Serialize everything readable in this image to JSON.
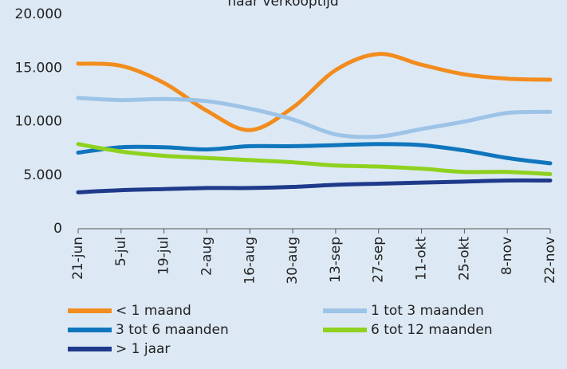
{
  "chart_data": {
    "type": "line",
    "title": "naar verkooptijd",
    "categories": [
      "21-jun",
      "5-jul",
      "19-jul",
      "2-aug",
      "16-aug",
      "30-aug",
      "13-sep",
      "27-sep",
      "11-okt",
      "25-okt",
      "8-nov",
      "22-nov"
    ],
    "series": [
      {
        "name": "< 1 maand",
        "color": "#f28c1e",
        "values": [
          15400,
          15200,
          13600,
          11000,
          9200,
          11300,
          14800,
          16300,
          15300,
          14400,
          14000,
          13900
        ]
      },
      {
        "name": "1 tot 3 maanden",
        "color": "#9dc3e6",
        "values": [
          12200,
          12000,
          12100,
          11900,
          11200,
          10200,
          8800,
          8600,
          9300,
          10000,
          10800,
          10900
        ]
      },
      {
        "name": "3 tot 6 maanden",
        "color": "#0f75bc",
        "values": [
          7100,
          7600,
          7600,
          7400,
          7700,
          7700,
          7800,
          7900,
          7800,
          7300,
          6600,
          6100
        ]
      },
      {
        "name": "6 tot 12 maanden",
        "color": "#8fd11f",
        "values": [
          7900,
          7200,
          6800,
          6600,
          6400,
          6200,
          5900,
          5800,
          5600,
          5300,
          5300,
          5100
        ]
      },
      {
        "name": "> 1 jaar",
        "color": "#1f3a8a",
        "values": [
          3400,
          3600,
          3700,
          3800,
          3800,
          3900,
          4100,
          4200,
          4300,
          4400,
          4500,
          4500
        ]
      }
    ],
    "ylim": [
      0,
      20000
    ],
    "yticks": [
      0,
      {
        "value": 5000,
        "label": "5.000"
      },
      {
        "value": 10000,
        "label": "10.000"
      },
      {
        "value": 15000,
        "label": "15.000"
      },
      {
        "value": 20000,
        "label": "20.000"
      }
    ],
    "grid": false
  }
}
